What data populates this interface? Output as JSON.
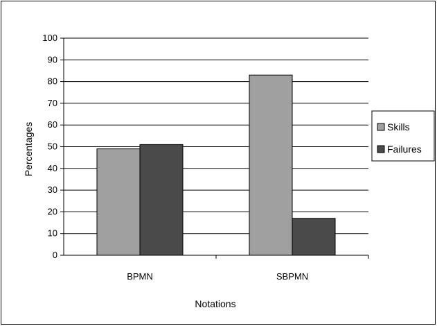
{
  "chart_data": {
    "type": "bar",
    "title": "",
    "xlabel": "Notations",
    "ylabel": "Percentages",
    "categories": [
      "BPMN",
      "SBPMN"
    ],
    "series": [
      {
        "name": "Skills",
        "values": [
          49,
          83
        ],
        "color": "#a0a0a0"
      },
      {
        "name": "Failures",
        "values": [
          51,
          17
        ],
        "color": "#4a4a4a"
      }
    ],
    "ylim": [
      0,
      100
    ],
    "yticks": [
      0,
      10,
      20,
      30,
      40,
      50,
      60,
      70,
      80,
      90,
      100
    ],
    "grid": true,
    "legend_position": "right"
  }
}
